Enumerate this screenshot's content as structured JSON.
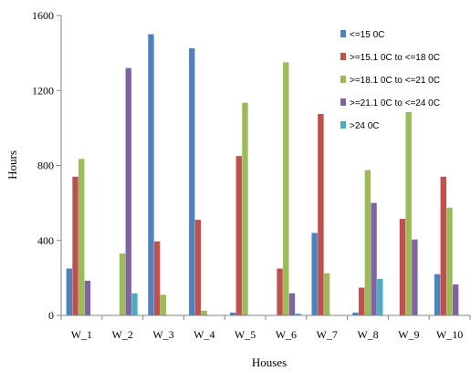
{
  "chart_data": {
    "type": "bar",
    "xlabel": "Houses",
    "ylabel": "Hours",
    "ylim": [
      0,
      1600
    ],
    "yticks": [
      0,
      400,
      800,
      1200,
      1600
    ],
    "grid": false,
    "legend_position": "top-right",
    "categories": [
      "W_1",
      "W_2",
      "W_3",
      "W_4",
      "W_5",
      "W_6",
      "W_7",
      "W_8",
      "W_9",
      "W_10"
    ],
    "series": [
      {
        "name": "<=15 0C",
        "color": "#4f81bd",
        "values": [
          250,
          0,
          1500,
          1425,
          15,
          0,
          440,
          15,
          0,
          220
        ]
      },
      {
        "name": ">=15.1 0C to <=18 0C",
        "color": "#c0504d",
        "values": [
          740,
          0,
          395,
          510,
          850,
          250,
          1075,
          148,
          515,
          740
        ]
      },
      {
        "name": ">=18.1 0C to <=21 0C",
        "color": "#9bbb59",
        "values": [
          835,
          330,
          110,
          25,
          1135,
          1350,
          225,
          775,
          1085,
          575
        ]
      },
      {
        "name": ">=21.1 0C to <=24 0C",
        "color": "#8064a2",
        "values": [
          185,
          1320,
          0,
          0,
          0,
          118,
          0,
          600,
          405,
          165
        ]
      },
      {
        "name": ">24 0C",
        "color": "#4bacc6",
        "values": [
          0,
          118,
          0,
          0,
          0,
          10,
          0,
          195,
          0,
          0
        ]
      }
    ]
  }
}
